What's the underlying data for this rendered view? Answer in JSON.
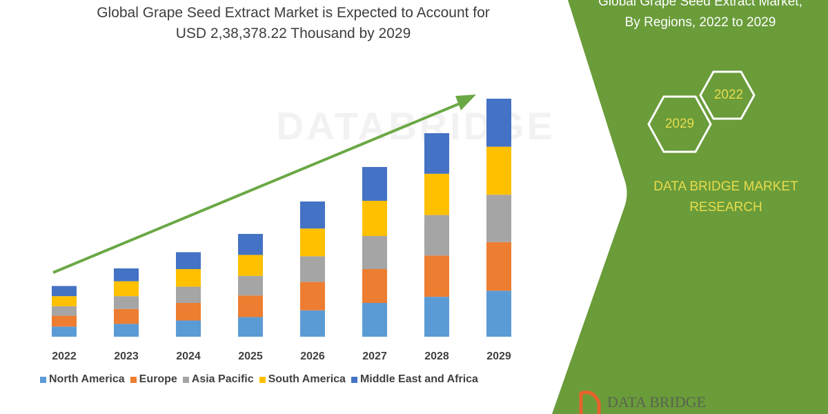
{
  "header": {
    "title_line1": "Global Grape Seed Extract Market is Expected to Account for",
    "title_line2": "USD 2,38,378.22 Thousand by 2029"
  },
  "side_panel": {
    "title_line1": "Global Grape Seed Extract Market,",
    "title_line2": "By Regions, 2022 to 2029",
    "hex_start": "2022",
    "hex_end": "2029",
    "brand_line1": "DATA BRIDGE MARKET",
    "brand_line2": "RESEARCH",
    "logo_text": "DATA BRIDGE",
    "panel_color": "#6a9c3a",
    "text_color": "#e8dc4c"
  },
  "chart_data": {
    "type": "bar",
    "stacked": true,
    "title": "Global Grape Seed Extract Market is Expected to Account for USD 2,38,378.22 Thousand by 2029",
    "xlabel": "",
    "ylabel": "",
    "y_axis_shown": false,
    "grid": false,
    "legend_position": "bottom",
    "trend_arrow": true,
    "categories": [
      "2022",
      "2023",
      "2024",
      "2025",
      "2026",
      "2027",
      "2028",
      "2029"
    ],
    "series": [
      {
        "name": "North America",
        "color": "#5b9bd5",
        "values": [
          15,
          19,
          24,
          29,
          39,
          50,
          59,
          68
        ]
      },
      {
        "name": "Europe",
        "color": "#ed7d31",
        "values": [
          16,
          22,
          26,
          32,
          42,
          50,
          61,
          72
        ]
      },
      {
        "name": "Asia Pacific",
        "color": "#a5a5a5",
        "values": [
          14,
          19,
          24,
          29,
          38,
          49,
          60,
          70
        ]
      },
      {
        "name": "South America",
        "color": "#ffc000",
        "values": [
          15,
          22,
          26,
          31,
          41,
          52,
          61,
          71
        ]
      },
      {
        "name": "Middle East and Africa",
        "color": "#4472c4",
        "values": [
          15,
          19,
          25,
          31,
          40,
          50,
          60,
          71
        ]
      }
    ]
  }
}
